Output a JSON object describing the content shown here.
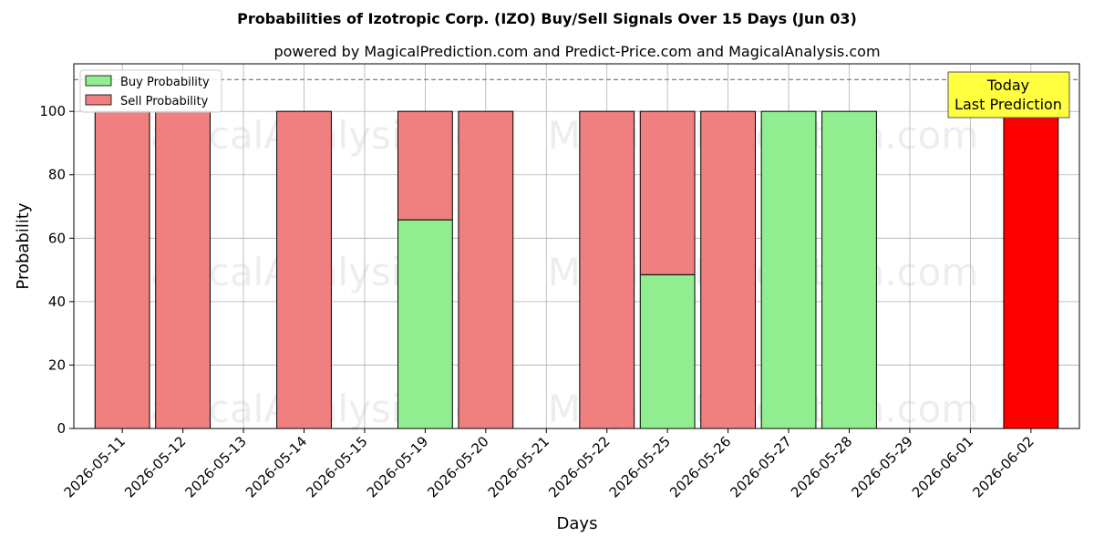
{
  "chart_data": {
    "type": "bar",
    "title": "Probabilities of Izotropic Corp. (IZO) Buy/Sell Signals Over 15 Days (Jun 03)",
    "subtitle": "powered by MagicalPrediction.com and Predict-Price.com and MagicalAnalysis.com",
    "xlabel": "Days",
    "ylabel": "Probability",
    "ylim": [
      0,
      115
    ],
    "yticks": [
      0,
      20,
      40,
      60,
      80,
      100
    ],
    "grid": true,
    "legend_position": "top-left",
    "stacked": true,
    "categories": [
      "2026-05-11",
      "2026-05-12",
      "2026-05-13",
      "2026-05-14",
      "2026-05-15",
      "2026-05-19",
      "2026-05-20",
      "2026-05-21",
      "2026-05-22",
      "2026-05-25",
      "2026-05-26",
      "2026-05-27",
      "2026-05-28",
      "2026-05-29",
      "2026-06-01",
      "2026-06-02"
    ],
    "series": [
      {
        "name": "Buy Probability",
        "color": "#90ee90",
        "values": [
          0,
          0,
          null,
          0,
          null,
          65.8,
          0,
          null,
          0,
          48.5,
          0,
          100,
          100,
          null,
          null,
          0
        ]
      },
      {
        "name": "Sell Probability",
        "color": "#f08080",
        "values": [
          100,
          100,
          null,
          100,
          null,
          34.2,
          100,
          null,
          100,
          51.5,
          100,
          0,
          0,
          null,
          null,
          100
        ]
      }
    ],
    "highlight": {
      "category": "2026-06-02",
      "color": "#ff0000"
    },
    "threshold_line": {
      "value": 110,
      "style": "dashed",
      "color": "#808080"
    },
    "annotation": {
      "line1": "Today",
      "line2": "Last Prediction",
      "background": "#ffff40"
    },
    "watermarks": [
      "MagicalAnalysis.com",
      "MagicalPrediction.com"
    ]
  }
}
